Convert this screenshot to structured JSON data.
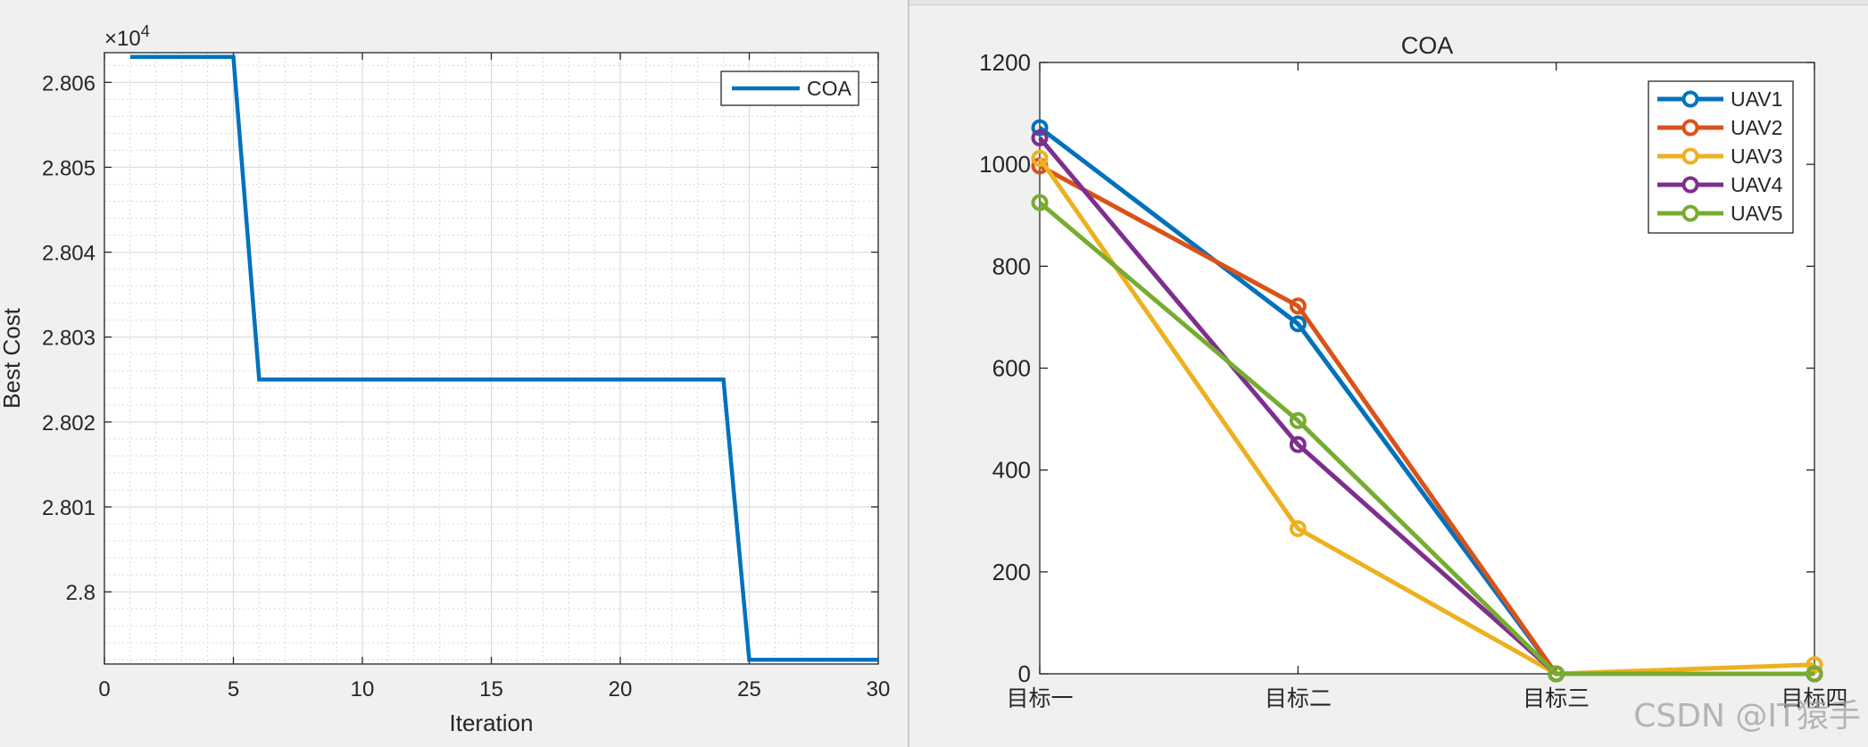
{
  "colors": {
    "figure_bg": "#f0f0f0",
    "axes_bg": "#ffffff",
    "coa_line": "#0072bd",
    "uav1": "#0072bd",
    "uav2": "#d95319",
    "uav3": "#edb120",
    "uav4": "#7e2f8e",
    "uav5": "#77ac30"
  },
  "watermark": "CSDN @IT猿手",
  "chart_data": [
    {
      "type": "line",
      "title": "",
      "xlabel": "Iteration",
      "ylabel": "Best Cost",
      "exponent_label": "×10",
      "exponent_power": "4",
      "xlim": [
        0,
        30
      ],
      "ylim": [
        27991.5,
        28063.5
      ],
      "xticks": [
        0,
        5,
        10,
        15,
        20,
        25,
        30
      ],
      "xtick_labels": [
        "0",
        "5",
        "10",
        "15",
        "20",
        "25",
        "30"
      ],
      "yticks": [
        28000,
        28010,
        28020,
        28030,
        28040,
        28050,
        28060
      ],
      "ytick_labels": [
        "2.8",
        "2.801",
        "2.802",
        "2.803",
        "2.804",
        "2.805",
        "2.806"
      ],
      "grid": true,
      "minor_grid": true,
      "legend_position": "top-right",
      "series": [
        {
          "name": "COA",
          "color": "#0072bd",
          "x": [
            1,
            2,
            3,
            4,
            5,
            6,
            7,
            8,
            9,
            10,
            11,
            12,
            13,
            14,
            15,
            16,
            17,
            18,
            19,
            20,
            21,
            22,
            23,
            24,
            25,
            26,
            27,
            28,
            29,
            30
          ],
          "y": [
            28063,
            28063,
            28063,
            28063,
            28063,
            28025,
            28025,
            28025,
            28025,
            28025,
            28025,
            28025,
            28025,
            28025,
            28025,
            28025,
            28025,
            28025,
            28025,
            28025,
            28025,
            28025,
            28025,
            28025,
            27992,
            27992,
            27992,
            27992,
            27992,
            27992
          ]
        }
      ]
    },
    {
      "type": "line",
      "title": "COA",
      "xlabel": "",
      "ylabel": "",
      "categories": [
        "目标一",
        "目标二",
        "目标三",
        "目标四"
      ],
      "xlim": [
        1,
        4
      ],
      "ylim": [
        0,
        1200
      ],
      "yticks": [
        0,
        200,
        400,
        600,
        800,
        1000,
        1200
      ],
      "ytick_labels": [
        "0",
        "200",
        "400",
        "600",
        "800",
        "1000",
        "1200"
      ],
      "grid": false,
      "legend_position": "top-right",
      "markers": "circle",
      "series": [
        {
          "name": "UAV1",
          "color": "#0072bd",
          "values": [
            1072,
            687,
            0,
            0
          ]
        },
        {
          "name": "UAV2",
          "color": "#d95319",
          "values": [
            997,
            722,
            0,
            0
          ]
        },
        {
          "name": "UAV3",
          "color": "#edb120",
          "values": [
            1012,
            285,
            0,
            18
          ]
        },
        {
          "name": "UAV4",
          "color": "#7e2f8e",
          "values": [
            1052,
            450,
            0,
            0
          ]
        },
        {
          "name": "UAV5",
          "color": "#77ac30",
          "values": [
            925,
            497,
            0,
            0
          ]
        }
      ]
    }
  ]
}
